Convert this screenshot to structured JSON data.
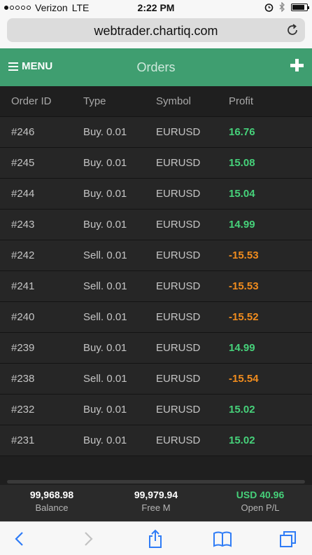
{
  "status_bar": {
    "carrier": "Verizon",
    "network": "LTE",
    "time": "2:22 PM",
    "signal_bars": 1,
    "battery_level": 0.85
  },
  "browser": {
    "url": "webtrader.chartiq.com"
  },
  "header": {
    "menu_label": "MENU",
    "title": "Orders"
  },
  "orders": {
    "columns": [
      "Order ID",
      "Type",
      "Symbol",
      "Profit"
    ],
    "rows": [
      {
        "id": "#246",
        "type": "Buy. 0.01",
        "symbol": "EURUSD",
        "profit": "16.76"
      },
      {
        "id": "#245",
        "type": "Buy. 0.01",
        "symbol": "EURUSD",
        "profit": "15.08"
      },
      {
        "id": "#244",
        "type": "Buy. 0.01",
        "symbol": "EURUSD",
        "profit": "15.04"
      },
      {
        "id": "#243",
        "type": "Buy. 0.01",
        "symbol": "EURUSD",
        "profit": "14.99"
      },
      {
        "id": "#242",
        "type": "Sell. 0.01",
        "symbol": "EURUSD",
        "profit": "-15.53"
      },
      {
        "id": "#241",
        "type": "Sell. 0.01",
        "symbol": "EURUSD",
        "profit": "-15.53"
      },
      {
        "id": "#240",
        "type": "Sell. 0.01",
        "symbol": "EURUSD",
        "profit": "-15.52"
      },
      {
        "id": "#239",
        "type": "Buy. 0.01",
        "symbol": "EURUSD",
        "profit": "14.99"
      },
      {
        "id": "#238",
        "type": "Sell. 0.01",
        "symbol": "EURUSD",
        "profit": "-15.54"
      },
      {
        "id": "#232",
        "type": "Buy. 0.01",
        "symbol": "EURUSD",
        "profit": "15.02"
      },
      {
        "id": "#231",
        "type": "Buy. 0.01",
        "symbol": "EURUSD",
        "profit": "15.02"
      }
    ]
  },
  "account": {
    "balance_value": "99,968.98",
    "balance_label": "Balance",
    "free_margin_value": "99,979.94",
    "free_margin_label": "Free M",
    "open_pl_value": "USD 40.96",
    "open_pl_label": "Open P/L"
  },
  "toolbar": {
    "icons": [
      "back-icon",
      "forward-icon",
      "share-icon",
      "bookmarks-icon",
      "tabs-icon"
    ]
  },
  "colors": {
    "header_green": "#3f9e70",
    "profit_positive": "#46d17a",
    "profit_negative": "#f08c1e",
    "ios_blue": "#2f7cf6"
  }
}
